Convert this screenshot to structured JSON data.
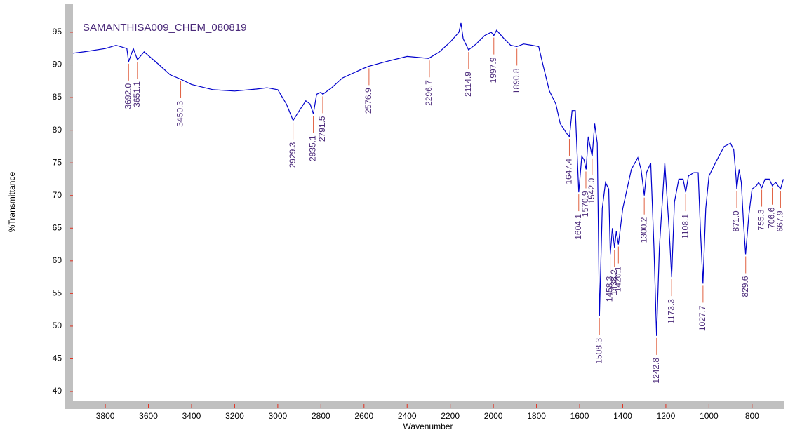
{
  "chart_data": {
    "type": "line",
    "title": "SAMANTHISA009_CHEM_080819",
    "x_label": "Wavenumber",
    "y_label": "%Transmittance",
    "xlim": [
      3950,
      653
    ],
    "ylim": [
      38.5,
      99.4
    ],
    "xticks": [
      3800,
      3600,
      3400,
      3200,
      3000,
      2800,
      2600,
      2400,
      2200,
      2000,
      1800,
      1600,
      1400,
      1200,
      1000,
      800
    ],
    "yticks": [
      40,
      45,
      50,
      55,
      60,
      65,
      70,
      75,
      80,
      85,
      90,
      95
    ],
    "series": [
      {
        "color": "#0000cc",
        "x": [
          3950,
          3900,
          3800,
          3750,
          3700,
          3692,
          3670,
          3651,
          3620,
          3550,
          3500,
          3450,
          3400,
          3300,
          3200,
          3100,
          3050,
          3000,
          2960,
          2929,
          2900,
          2870,
          2850,
          2835,
          2820,
          2800,
          2791,
          2750,
          2700,
          2600,
          2577,
          2500,
          2400,
          2300,
          2250,
          2200,
          2160,
          2150,
          2140,
          2115,
          2080,
          2040,
          2010,
          1998,
          1985,
          1950,
          1920,
          1891,
          1860,
          1820,
          1790,
          1770,
          1740,
          1710,
          1690,
          1670,
          1660,
          1647,
          1635,
          1620,
          1604,
          1590,
          1580,
          1570,
          1560,
          1542,
          1530,
          1518,
          1508,
          1495,
          1480,
          1465,
          1458,
          1448,
          1438,
          1430,
          1420,
          1400,
          1360,
          1330,
          1315,
          1300,
          1290,
          1270,
          1255,
          1243,
          1230,
          1205,
          1185,
          1173,
          1160,
          1140,
          1120,
          1108,
          1095,
          1070,
          1050,
          1040,
          1028,
          1015,
          1000,
          970,
          930,
          900,
          885,
          875,
          871,
          860,
          850,
          840,
          830,
          815,
          800,
          780,
          770,
          755,
          740,
          720,
          706,
          690,
          680,
          668,
          655
        ],
        "values": [
          91.8,
          92.0,
          92.5,
          93,
          92.5,
          90.5,
          92.5,
          90.8,
          92,
          90,
          88.5,
          87.8,
          87,
          86.2,
          86,
          86.3,
          86.5,
          86.2,
          84,
          81.5,
          83,
          84.5,
          84,
          82.5,
          85.5,
          85.8,
          85.5,
          86.5,
          88,
          89.5,
          89.8,
          90.5,
          91.3,
          91,
          92,
          93.5,
          95,
          96.4,
          94,
          92.3,
          93.2,
          94.5,
          95,
          94.5,
          95.3,
          94,
          93,
          92.8,
          93.2,
          93,
          92.8,
          90,
          86,
          84,
          81,
          80,
          79.5,
          79,
          83,
          83,
          70.5,
          76,
          75.5,
          74,
          79,
          76,
          81,
          78,
          51.5,
          68,
          72,
          71,
          61,
          65,
          62,
          64.5,
          62.5,
          68,
          74,
          75.8,
          74,
          70,
          73.5,
          75,
          62,
          48.5,
          62,
          75,
          65,
          57.5,
          69,
          72.5,
          72.5,
          70.5,
          73,
          73.5,
          73.5,
          65,
          56.5,
          68,
          73,
          75,
          77.5,
          78,
          77,
          73,
          71,
          74,
          72,
          66,
          61,
          67,
          71,
          71.5,
          72,
          71.2,
          72.5,
          72.5,
          71.5,
          72,
          71.5,
          71,
          72.5
        ]
      }
    ],
    "peaks": {
      "x": [
        3692,
        3651.1,
        3450.3,
        2929.3,
        2835.1,
        2791.5,
        2576.9,
        2296.7,
        2114.9,
        1997.9,
        1890.8,
        1647.4,
        1604.1,
        1570.9,
        1542,
        1508.3,
        1458.3,
        1438.2,
        1420.1,
        1300.2,
        1242.8,
        1173.3,
        1108.1,
        1027.7,
        871,
        829.6,
        755.3,
        706.6,
        667.9
      ],
      "labels": [
        "3692.0",
        "3651.1",
        "3450.3",
        "2929.3",
        "2835.1",
        "2791.5",
        "2576.9",
        "2296.7",
        "2114.9",
        "1997.9",
        "1890.8",
        "1647.4",
        "1604.1",
        "1570.9",
        "1542.0",
        "1508.3",
        "1458.3",
        "1438.2",
        "1420.1",
        "1300.2",
        "1242.8",
        "1173.3",
        "1108.1",
        "1027.7",
        "871.0",
        "829.6",
        "755.3",
        "706.6",
        "667.9"
      ],
      "y": [
        90.5,
        90.8,
        87.8,
        81.5,
        82.5,
        85.5,
        89.8,
        91,
        92.3,
        94.5,
        92.8,
        79,
        70.5,
        74,
        76,
        51.5,
        61,
        62,
        62.5,
        70,
        48.5,
        57.5,
        70.5,
        56.5,
        71,
        61,
        71.2,
        71.5,
        71
      ]
    }
  }
}
